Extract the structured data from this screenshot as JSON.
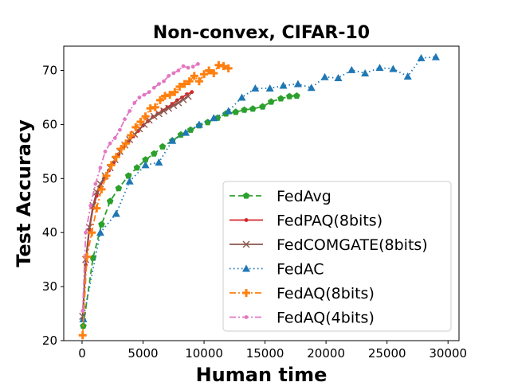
{
  "chart_data": {
    "type": "line",
    "title": "Non-convex, CIFAR-10",
    "xlabel": "Human time",
    "ylabel": "Test Accuracy",
    "xlim": [
      -1500,
      30900
    ],
    "ylim": [
      20,
      74.5
    ],
    "xticks": [
      0,
      5000,
      10000,
      15000,
      20000,
      25000,
      30000
    ],
    "yticks": [
      20,
      30,
      40,
      50,
      60,
      70
    ],
    "grid": false,
    "legend_position": "lower-right",
    "series": [
      {
        "name": "FedAvg",
        "color": "#2ca02c",
        "dash": "7,4",
        "marker": "pentagon",
        "x": [
          100,
          900,
          1600,
          2300,
          3000,
          3800,
          4500,
          5200,
          5900,
          6600,
          7400,
          8100,
          8900,
          9600,
          10300,
          11100,
          11800,
          12600,
          13300,
          14000,
          14800,
          15500,
          16300,
          17000,
          17600
        ],
        "y": [
          22.7,
          35.3,
          41.5,
          45.8,
          48.2,
          50.5,
          52.0,
          53.5,
          54.6,
          55.9,
          57.0,
          58.1,
          59.0,
          59.8,
          60.4,
          61.2,
          62.0,
          62.3,
          62.7,
          62.9,
          63.3,
          64.2,
          64.8,
          65.2,
          65.3
        ]
      },
      {
        "name": "FedPAQ(8bits)",
        "color": "#d62728",
        "dash": "",
        "marker": "dot",
        "x": [
          50,
          300,
          600,
          900,
          1200,
          1500,
          1800,
          2200,
          2600,
          3000,
          3400,
          3800,
          4200,
          4600,
          5000,
          5400,
          5800,
          6200,
          6600,
          7000,
          7400,
          7800,
          8200,
          8600,
          9000
        ],
        "y": [
          24.0,
          34.0,
          40.5,
          44.5,
          46.8,
          48.5,
          50.0,
          51.5,
          53.0,
          54.5,
          55.8,
          56.8,
          57.8,
          58.8,
          59.8,
          60.6,
          61.4,
          62.0,
          62.6,
          63.2,
          63.8,
          64.5,
          65.0,
          65.6,
          66.0
        ]
      },
      {
        "name": "FedCOMGATE(8bits)",
        "color": "#8c564b",
        "dash": "",
        "marker": "x",
        "x": [
          50,
          300,
          600,
          900,
          1200,
          1500,
          1900,
          2300,
          2700,
          3100,
          3500,
          3900,
          4300,
          4700,
          5100,
          5500,
          5900,
          6300,
          6700,
          7100,
          7500,
          7900,
          8300,
          8700
        ],
        "y": [
          24.5,
          35.0,
          41.0,
          45.0,
          47.5,
          49.0,
          50.5,
          52.0,
          53.5,
          55.0,
          56.2,
          57.2,
          58.2,
          59.2,
          60.0,
          60.8,
          61.5,
          62.0,
          62.5,
          63.0,
          63.5,
          64.0,
          64.6,
          65.2
        ]
      },
      {
        "name": "FedAC",
        "color": "#1f77b4",
        "dash": "1.5,3.5",
        "marker": "triangle",
        "x": [
          100,
          1500,
          2800,
          3900,
          5200,
          6300,
          7400,
          8500,
          9600,
          10800,
          12000,
          13100,
          14200,
          15400,
          16500,
          17700,
          18800,
          19900,
          21000,
          22100,
          23200,
          24400,
          25500,
          26700,
          27800,
          29000
        ],
        "y": [
          24.0,
          40.0,
          43.5,
          49.5,
          52.5,
          53.0,
          57.0,
          58.5,
          60.0,
          61.2,
          62.5,
          65.0,
          66.7,
          66.7,
          67.2,
          67.5,
          66.8,
          68.8,
          68.6,
          70.1,
          69.5,
          70.5,
          70.3,
          68.9,
          72.3,
          72.5
        ]
      },
      {
        "name": "FedAQ(8bits)",
        "color": "#ff7f0e",
        "dash": "8,3,2,3",
        "marker": "plus",
        "x": [
          50,
          400,
          800,
          1200,
          1600,
          2000,
          2400,
          2800,
          3200,
          3600,
          4000,
          4400,
          4800,
          5200,
          5600,
          6000,
          6400,
          6800,
          7200,
          7600,
          8000,
          8400,
          8800,
          9200,
          9600,
          10000,
          10400,
          10800,
          11200,
          11600,
          12000
        ],
        "y": [
          21.0,
          35.5,
          40.0,
          44.5,
          48.0,
          50.5,
          52.5,
          54.0,
          55.5,
          56.5,
          58.0,
          59.5,
          60.5,
          61.5,
          63.0,
          63.2,
          64.5,
          65.3,
          65.5,
          66.0,
          67.0,
          67.5,
          68.0,
          69.0,
          68.0,
          69.3,
          70.0,
          69.5,
          71.0,
          70.8,
          70.4
        ]
      },
      {
        "name": "FedAQ(4bits)",
        "color": "#e377c2",
        "dash": "8,3,2,3",
        "marker": "dot",
        "x": [
          50,
          300,
          700,
          1100,
          1500,
          1900,
          2300,
          2700,
          3100,
          3500,
          3900,
          4300,
          4700,
          5100,
          5500,
          5900,
          6300,
          6700,
          7100,
          7500,
          7900,
          8300,
          8700,
          9100,
          9500
        ],
        "y": [
          25.5,
          40.0,
          45.0,
          49.0,
          52.0,
          55.0,
          56.5,
          57.5,
          59.0,
          61.0,
          62.5,
          64.0,
          65.0,
          65.5,
          66.0,
          66.8,
          67.5,
          68.0,
          69.0,
          69.5,
          70.0,
          70.8,
          70.5,
          70.7,
          71.2
        ]
      }
    ]
  }
}
